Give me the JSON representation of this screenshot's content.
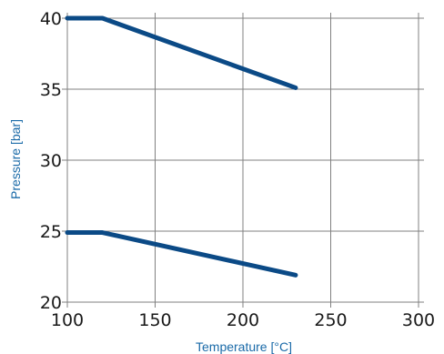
{
  "chart_data": {
    "type": "line",
    "xlabel": "Temperature [°C]",
    "ylabel": "Pressure [bar]",
    "xlim": [
      100,
      300
    ],
    "ylim": [
      20,
      40
    ],
    "xticks": [
      100,
      150,
      200,
      250,
      300
    ],
    "yticks": [
      20,
      25,
      30,
      35,
      40
    ],
    "grid": true,
    "series": [
      {
        "x": [
          100,
          120,
          230
        ],
        "y": [
          40,
          40,
          35.1
        ],
        "color": "#0b4a86"
      },
      {
        "x": [
          100,
          120,
          230
        ],
        "y": [
          24.9,
          24.9,
          21.9
        ],
        "color": "#0b4a86"
      }
    ]
  }
}
